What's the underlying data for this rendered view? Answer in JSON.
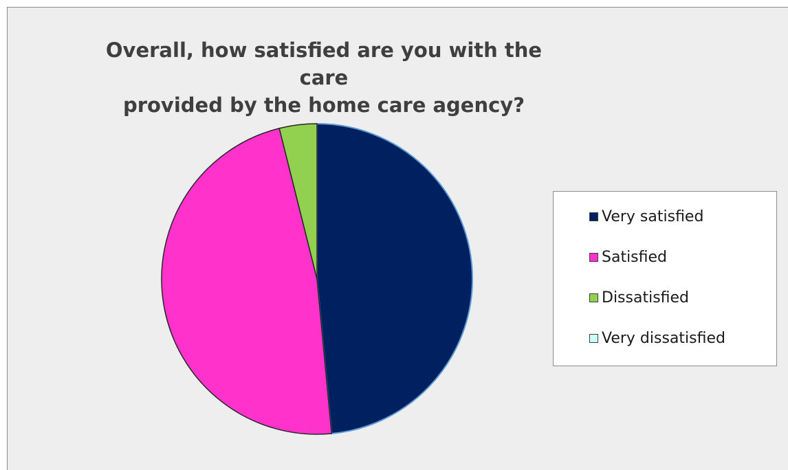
{
  "chart_data": {
    "type": "pie",
    "title": "Overall, how satisfied are you with the care\nprovided by the home care agency?",
    "categories": [
      "Very satisfied",
      "Satisfied",
      "Dissatisfied",
      "Very dissatisfied"
    ],
    "values": [
      48.5,
      47.6,
      3.9,
      0
    ],
    "colors": [
      "#002060",
      "#ff33cc",
      "#92d050",
      "#ccffff"
    ],
    "legend_position": "right"
  }
}
